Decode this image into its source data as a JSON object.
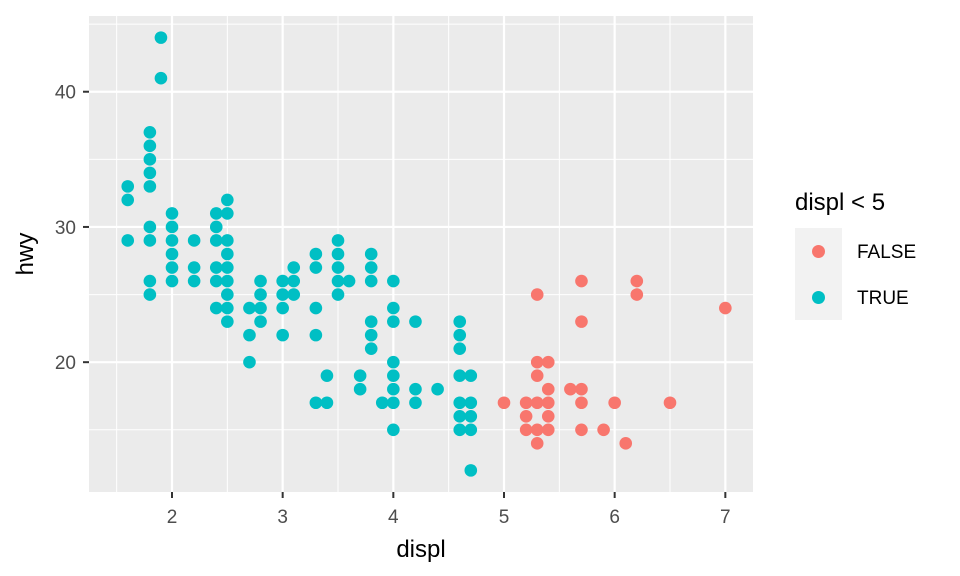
{
  "chart_data": {
    "type": "scatter",
    "title": "",
    "xlabel": "displ",
    "ylabel": "hwy",
    "xlim": [
      1.25,
      7.25
    ],
    "ylim": [
      10.4,
      45.6
    ],
    "x_ticks": [
      2,
      3,
      4,
      5,
      6,
      7
    ],
    "y_ticks": [
      20,
      30,
      40
    ],
    "grid": true,
    "legend": {
      "title": "displ < 5",
      "position": "right",
      "entries": [
        {
          "label": "FALSE",
          "color": "#F8766D"
        },
        {
          "label": "TRUE",
          "color": "#00BFC4"
        }
      ]
    },
    "series": [
      {
        "name": "FALSE",
        "color": "#F8766D",
        "points": [
          [
            5.0,
            17
          ],
          [
            5.2,
            17
          ],
          [
            5.2,
            16
          ],
          [
            5.2,
            15
          ],
          [
            5.3,
            25
          ],
          [
            5.3,
            20
          ],
          [
            5.3,
            19
          ],
          [
            5.3,
            17
          ],
          [
            5.3,
            15
          ],
          [
            5.3,
            14
          ],
          [
            5.4,
            20
          ],
          [
            5.4,
            18
          ],
          [
            5.4,
            17
          ],
          [
            5.4,
            16
          ],
          [
            5.4,
            15
          ],
          [
            5.6,
            18
          ],
          [
            5.7,
            26
          ],
          [
            5.7,
            23
          ],
          [
            5.7,
            18
          ],
          [
            5.7,
            17
          ],
          [
            5.7,
            15
          ],
          [
            5.9,
            15
          ],
          [
            6.0,
            17
          ],
          [
            6.1,
            14
          ],
          [
            6.2,
            26
          ],
          [
            6.2,
            25
          ],
          [
            6.5,
            17
          ],
          [
            7.0,
            24
          ]
        ]
      },
      {
        "name": "TRUE",
        "color": "#00BFC4",
        "points": [
          [
            1.6,
            33
          ],
          [
            1.6,
            32
          ],
          [
            1.6,
            29
          ],
          [
            1.8,
            37
          ],
          [
            1.8,
            36
          ],
          [
            1.8,
            35
          ],
          [
            1.8,
            34
          ],
          [
            1.8,
            33
          ],
          [
            1.8,
            30
          ],
          [
            1.8,
            29
          ],
          [
            1.8,
            26
          ],
          [
            1.8,
            25
          ],
          [
            1.9,
            44
          ],
          [
            1.9,
            41
          ],
          [
            2.0,
            31
          ],
          [
            2.0,
            30
          ],
          [
            2.0,
            29
          ],
          [
            2.0,
            28
          ],
          [
            2.0,
            27
          ],
          [
            2.0,
            26
          ],
          [
            2.2,
            29
          ],
          [
            2.2,
            27
          ],
          [
            2.2,
            26
          ],
          [
            2.4,
            31
          ],
          [
            2.4,
            30
          ],
          [
            2.4,
            29
          ],
          [
            2.4,
            27
          ],
          [
            2.4,
            26
          ],
          [
            2.4,
            24
          ],
          [
            2.5,
            32
          ],
          [
            2.5,
            31
          ],
          [
            2.5,
            29
          ],
          [
            2.5,
            28
          ],
          [
            2.5,
            27
          ],
          [
            2.5,
            26
          ],
          [
            2.5,
            25
          ],
          [
            2.5,
            24
          ],
          [
            2.5,
            23
          ],
          [
            2.7,
            24
          ],
          [
            2.7,
            22
          ],
          [
            2.7,
            20
          ],
          [
            2.8,
            26
          ],
          [
            2.8,
            25
          ],
          [
            2.8,
            24
          ],
          [
            2.8,
            23
          ],
          [
            3.0,
            26
          ],
          [
            3.0,
            25
          ],
          [
            3.0,
            24
          ],
          [
            3.0,
            22
          ],
          [
            3.1,
            27
          ],
          [
            3.1,
            26
          ],
          [
            3.1,
            25
          ],
          [
            3.3,
            28
          ],
          [
            3.3,
            27
          ],
          [
            3.3,
            24
          ],
          [
            3.3,
            22
          ],
          [
            3.3,
            17
          ],
          [
            3.4,
            19
          ],
          [
            3.4,
            17
          ],
          [
            3.5,
            29
          ],
          [
            3.5,
            28
          ],
          [
            3.5,
            27
          ],
          [
            3.5,
            26
          ],
          [
            3.5,
            25
          ],
          [
            3.6,
            26
          ],
          [
            3.7,
            19
          ],
          [
            3.7,
            18
          ],
          [
            3.8,
            28
          ],
          [
            3.8,
            27
          ],
          [
            3.8,
            26
          ],
          [
            3.8,
            23
          ],
          [
            3.8,
            22
          ],
          [
            3.8,
            21
          ],
          [
            3.9,
            17
          ],
          [
            4.0,
            26
          ],
          [
            4.0,
            24
          ],
          [
            4.0,
            23
          ],
          [
            4.0,
            20
          ],
          [
            4.0,
            19
          ],
          [
            4.0,
            18
          ],
          [
            4.0,
            17
          ],
          [
            4.0,
            15
          ],
          [
            4.2,
            23
          ],
          [
            4.2,
            18
          ],
          [
            4.2,
            17
          ],
          [
            4.4,
            18
          ],
          [
            4.6,
            23
          ],
          [
            4.6,
            22
          ],
          [
            4.6,
            21
          ],
          [
            4.6,
            19
          ],
          [
            4.6,
            17
          ],
          [
            4.6,
            16
          ],
          [
            4.6,
            15
          ],
          [
            4.7,
            19
          ],
          [
            4.7,
            17
          ],
          [
            4.7,
            16
          ],
          [
            4.7,
            15
          ],
          [
            4.7,
            12
          ]
        ]
      }
    ]
  }
}
